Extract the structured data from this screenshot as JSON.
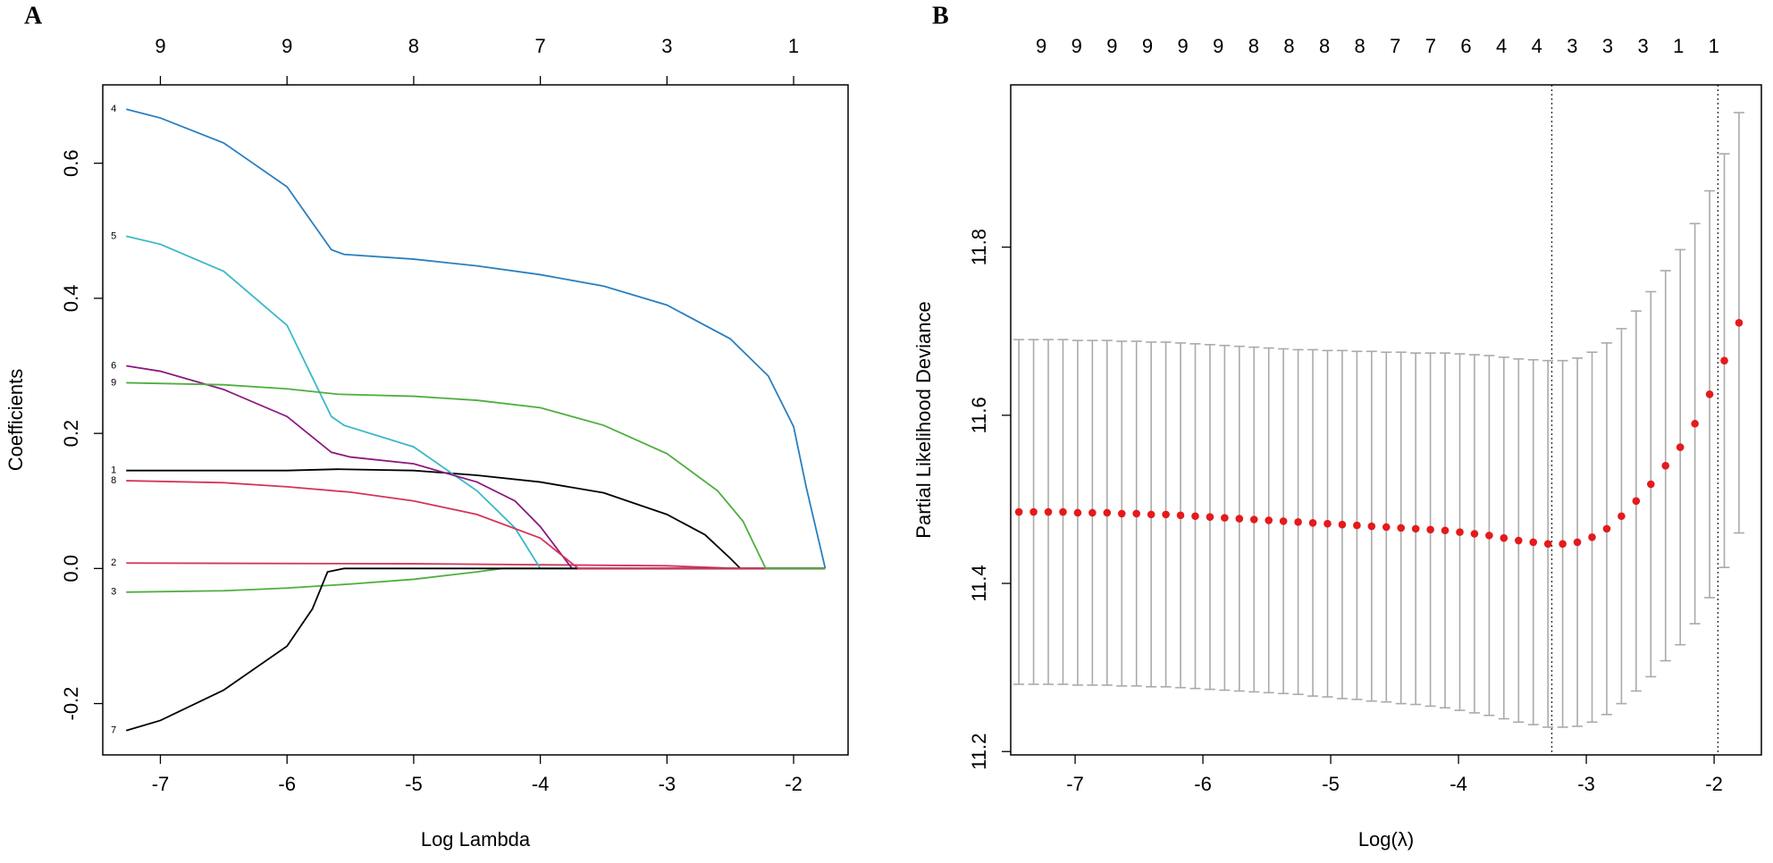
{
  "chart_data": [
    {
      "type": "line",
      "panel_label": "A",
      "x_label": "Log Lambda",
      "y_label": "Coefficients",
      "xlim": [
        -7.455,
        -1.57
      ],
      "ylim": [
        -0.276,
        0.716
      ],
      "xticks": [
        -7,
        -6,
        -5,
        -4,
        -3,
        -2
      ],
      "yticks": [
        -0.2,
        {
          "value": 0,
          "label": "0.0"
        },
        0.2,
        0.4,
        0.6
      ],
      "top_ticks": [
        {
          "value": -7,
          "label": "9"
        },
        {
          "value": -6,
          "label": "9"
        },
        {
          "value": -5,
          "label": "8"
        },
        {
          "value": -4,
          "label": "7"
        },
        {
          "value": -3,
          "label": "3"
        },
        {
          "value": -2,
          "label": "1"
        }
      ],
      "series": [
        {
          "name": "1",
          "color": "#000000",
          "x": [
            -7.27,
            -6,
            -5.6,
            -5,
            -4.5,
            -4,
            -3.5,
            -3,
            -2.7,
            -2.5,
            -2.42,
            -1.75
          ],
          "values": [
            0.145,
            0.145,
            0.147,
            0.145,
            0.138,
            0.128,
            0.112,
            0.08,
            0.05,
            0.015,
            0,
            0
          ]
        },
        {
          "name": "2",
          "color": "#d6345a",
          "x": [
            -7.27,
            -5,
            -3,
            -2.45,
            -1.75
          ],
          "values": [
            0.008,
            0.007,
            0.004,
            0,
            0
          ]
        },
        {
          "name": "3",
          "color": "#4fae3f",
          "x": [
            -7.27,
            -6.5,
            -6,
            -5.5,
            -5,
            -4.5,
            -4.3,
            -1.75
          ],
          "values": [
            -0.035,
            -0.033,
            -0.029,
            -0.023,
            -0.016,
            -0.005,
            0,
            0
          ]
        },
        {
          "name": "4",
          "color": "#2a7fc0",
          "x": [
            -7.27,
            -7,
            -6.5,
            -6,
            -5.65,
            -5.55,
            -5,
            -4.5,
            -4,
            -3.5,
            -3,
            -2.5,
            -2.2,
            -2,
            -1.9,
            -1.75
          ],
          "values": [
            0.68,
            0.667,
            0.63,
            0.565,
            0.472,
            0.465,
            0.458,
            0.448,
            0.435,
            0.418,
            0.39,
            0.34,
            0.285,
            0.21,
            0.12,
            0
          ]
        },
        {
          "name": "5",
          "color": "#3ab8c8",
          "x": [
            -7.27,
            -7,
            -6.5,
            -6,
            -5.65,
            -5.55,
            -5,
            -4.5,
            -4.2,
            -4,
            -1.75
          ],
          "values": [
            0.492,
            0.48,
            0.44,
            0.36,
            0.225,
            0.212,
            0.18,
            0.115,
            0.06,
            0,
            0
          ]
        },
        {
          "name": "6",
          "color": "#8b1a7f",
          "x": [
            -7.27,
            -7,
            -6.5,
            -6,
            -5.65,
            -5.5,
            -5,
            -4.5,
            -4.2,
            -4,
            -3.75,
            -1.75
          ],
          "values": [
            0.3,
            0.292,
            0.265,
            0.225,
            0.172,
            0.165,
            0.155,
            0.128,
            0.1,
            0.062,
            0,
            0
          ]
        },
        {
          "name": "7",
          "color": "#000000",
          "x": [
            -7.27,
            -7,
            -6.5,
            -6,
            -5.8,
            -5.68,
            -5.55,
            -4.5,
            -1.75
          ],
          "values": [
            -0.24,
            -0.225,
            -0.18,
            -0.115,
            -0.06,
            -0.005,
            0,
            0,
            0
          ]
        },
        {
          "name": "8",
          "color": "#d6345a",
          "x": [
            -7.27,
            -6.5,
            -6,
            -5.5,
            -5,
            -4.5,
            -4,
            -3.7,
            -1.75
          ],
          "values": [
            0.13,
            0.127,
            0.121,
            0.113,
            0.1,
            0.08,
            0.045,
            0,
            0
          ]
        },
        {
          "name": "9",
          "color": "#4fae3f",
          "x": [
            -7.27,
            -6.5,
            -6,
            -5.6,
            -5,
            -4.5,
            -4,
            -3.5,
            -3,
            -2.6,
            -2.4,
            -2.22,
            -1.75
          ],
          "values": [
            0.275,
            0.272,
            0.266,
            0.258,
            0.255,
            0.249,
            0.238,
            0.212,
            0.17,
            0.115,
            0.07,
            0,
            0
          ]
        }
      ]
    },
    {
      "type": "errorbar",
      "panel_label": "B",
      "x_label": "Log(λ)",
      "y_label": "Partial Likelihood Deviance",
      "xlim": [
        -7.504,
        -1.63
      ],
      "ylim": [
        11.196,
        11.993
      ],
      "xticks": [
        -7,
        -6,
        -5,
        -4,
        -3,
        -2
      ],
      "yticks": [
        11.2,
        11.4,
        11.6,
        11.8
      ],
      "top_ticks": [
        {
          "value": -7.265,
          "label": "9"
        },
        {
          "value": -6.988,
          "label": "9"
        },
        {
          "value": -6.711,
          "label": "9"
        },
        {
          "value": -6.434,
          "label": "9"
        },
        {
          "value": -6.157,
          "label": "9"
        },
        {
          "value": -5.88,
          "label": "9"
        },
        {
          "value": -5.603,
          "label": "8"
        },
        {
          "value": -5.326,
          "label": "8"
        },
        {
          "value": -5.049,
          "label": "8"
        },
        {
          "value": -4.772,
          "label": "8"
        },
        {
          "value": -4.495,
          "label": "7"
        },
        {
          "value": -4.218,
          "label": "7"
        },
        {
          "value": -3.941,
          "label": "6"
        },
        {
          "value": -3.664,
          "label": "4"
        },
        {
          "value": -3.387,
          "label": "4"
        },
        {
          "value": -3.11,
          "label": "3"
        },
        {
          "value": -2.833,
          "label": "3"
        },
        {
          "value": -2.556,
          "label": "3"
        },
        {
          "value": -2.279,
          "label": "1"
        },
        {
          "value": -2.002,
          "label": "1"
        }
      ],
      "x": [
        -7.44,
        -7.325,
        -7.21,
        -7.095,
        -6.98,
        -6.865,
        -6.75,
        -6.635,
        -6.52,
        -6.405,
        -6.29,
        -6.175,
        -6.06,
        -5.945,
        -5.83,
        -5.715,
        -5.6,
        -5.485,
        -5.37,
        -5.255,
        -5.14,
        -5.025,
        -4.91,
        -4.795,
        -4.68,
        -4.565,
        -4.45,
        -4.335,
        -4.22,
        -4.105,
        -3.99,
        -3.875,
        -3.76,
        -3.645,
        -3.53,
        -3.415,
        -3.3,
        -3.185,
        -3.07,
        -2.955,
        -2.84,
        -2.725,
        -2.61,
        -2.495,
        -2.38,
        -2.265,
        -2.15,
        -2.035,
        -1.92,
        -1.805
      ],
      "values": [
        11.485,
        11.485,
        11.485,
        11.485,
        11.484,
        11.484,
        11.484,
        11.483,
        11.483,
        11.482,
        11.482,
        11.481,
        11.48,
        11.479,
        11.478,
        11.477,
        11.476,
        11.475,
        11.474,
        11.473,
        11.472,
        11.471,
        11.47,
        11.469,
        11.468,
        11.467,
        11.466,
        11.465,
        11.464,
        11.463,
        11.461,
        11.459,
        11.457,
        11.454,
        11.451,
        11.449,
        11.447,
        11.447,
        11.449,
        11.455,
        11.465,
        11.48,
        11.498,
        11.518,
        11.54,
        11.562,
        11.59,
        11.625,
        11.665,
        11.71
      ],
      "errors": [
        0.205,
        0.205,
        0.205,
        0.205,
        0.205,
        0.205,
        0.205,
        0.205,
        0.205,
        0.205,
        0.205,
        0.205,
        0.205,
        0.205,
        0.205,
        0.205,
        0.205,
        0.205,
        0.205,
        0.205,
        0.206,
        0.206,
        0.207,
        0.207,
        0.208,
        0.208,
        0.209,
        0.209,
        0.21,
        0.211,
        0.212,
        0.213,
        0.214,
        0.215,
        0.216,
        0.217,
        0.218,
        0.218,
        0.219,
        0.22,
        0.221,
        0.223,
        0.226,
        0.229,
        0.232,
        0.235,
        0.238,
        0.242,
        0.246,
        0.25
      ],
      "color": "#e41a1c",
      "error_color": "#aaaaaa",
      "vlines": [
        -3.27,
        -1.97
      ]
    }
  ]
}
